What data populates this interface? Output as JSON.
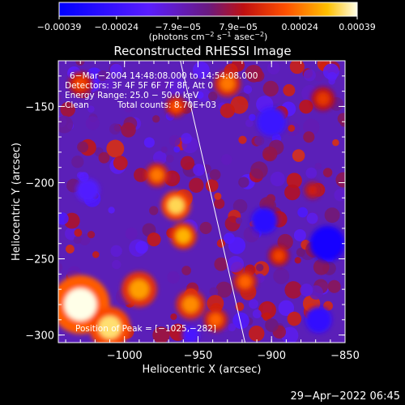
{
  "chart_data": {
    "type": "heatmap",
    "title": "Reconstructed RHESSI Image",
    "xlabel": "Heliocentric X (arcsec)",
    "ylabel": "Heliocentric Y (arcsec)",
    "xlim": [
      -1045,
      -850
    ],
    "ylim": [
      -305,
      -120
    ],
    "x_ticks": [
      {
        "value": -1000,
        "label": "−1000"
      },
      {
        "value": -950,
        "label": "−950"
      },
      {
        "value": -900,
        "label": "−900"
      },
      {
        "value": -850,
        "label": "−850"
      }
    ],
    "y_ticks": [
      {
        "value": -150,
        "label": "−150"
      },
      {
        "value": -200,
        "label": "−200"
      },
      {
        "value": -250,
        "label": "−250"
      },
      {
        "value": -300,
        "label": "−300"
      }
    ],
    "colorbar": {
      "min": -0.00039,
      "max": 0.00039,
      "ticks": [
        {
          "value": -0.00039,
          "label": "−0.00039"
        },
        {
          "value": -0.00024,
          "label": "−0.00024"
        },
        {
          "value": -7.9e-05,
          "label": "−7.9e−05"
        },
        {
          "value": 7.9e-05,
          "label": "7.9e−05"
        },
        {
          "value": 0.00024,
          "label": "0.00024"
        },
        {
          "value": 0.00039,
          "label": "0.00039"
        }
      ],
      "units_text": "(photons cm",
      "units_exp1": "−2",
      "units_mid": " s",
      "units_exp2": "−1",
      "units_mid2": " asec",
      "units_exp3": "−2",
      "units_close": ")"
    },
    "annotations": {
      "time_range": "6−Mar−2004 14:48:08.000 to 14:54:08.000",
      "detectors": "Detectors: 3F 4F 5F 6F 7F 8F, Att 0",
      "energy": "Energy Range: 25.0 − 50.0 keV",
      "method": "Clean",
      "total_counts": "Total counts: 8.70E+03",
      "peak": "Position of Peak = [−1025,−282]"
    },
    "limb_line": {
      "x": [
        -962,
        -918
      ],
      "y": [
        -120,
        -305
      ]
    },
    "hot_regions": [
      {
        "x": -1030,
        "y": -280,
        "v": 0.00039,
        "r": 20
      },
      {
        "x": -1010,
        "y": -295,
        "v": 0.00035,
        "r": 14
      },
      {
        "x": -990,
        "y": -270,
        "v": 0.00028,
        "r": 12
      },
      {
        "x": -965,
        "y": -215,
        "v": 0.00034,
        "r": 10
      },
      {
        "x": -978,
        "y": -195,
        "v": 0.00024,
        "r": 8
      },
      {
        "x": -960,
        "y": -235,
        "v": 0.0003,
        "r": 9
      },
      {
        "x": -955,
        "y": -280,
        "v": 0.00026,
        "r": 10
      },
      {
        "x": -938,
        "y": -290,
        "v": 0.00022,
        "r": 8
      },
      {
        "x": -930,
        "y": -135,
        "v": 0.00024,
        "r": 9
      },
      {
        "x": -965,
        "y": -150,
        "v": 0.0002,
        "r": 7
      },
      {
        "x": -1030,
        "y": -135,
        "v": 0.00018,
        "r": 8
      },
      {
        "x": -918,
        "y": -265,
        "v": 0.00022,
        "r": 8
      },
      {
        "x": -895,
        "y": -248,
        "v": 0.00018,
        "r": 7
      },
      {
        "x": -865,
        "y": -145,
        "v": 0.00016,
        "r": 8
      },
      {
        "x": -872,
        "y": -205,
        "v": 0.00012,
        "r": 6
      }
    ],
    "cold_regions": [
      {
        "x": -862,
        "y": -240,
        "v": -0.00034,
        "r": 12
      },
      {
        "x": -900,
        "y": -160,
        "v": -0.00024,
        "r": 10
      },
      {
        "x": -905,
        "y": -225,
        "v": -0.00028,
        "r": 9
      },
      {
        "x": -868,
        "y": -290,
        "v": -0.00026,
        "r": 9
      },
      {
        "x": -1025,
        "y": -205,
        "v": -0.00018,
        "r": 8
      },
      {
        "x": -955,
        "y": -300,
        "v": -0.0002,
        "r": 6
      }
    ]
  },
  "timestamp": "29−Apr−2022 06:45"
}
